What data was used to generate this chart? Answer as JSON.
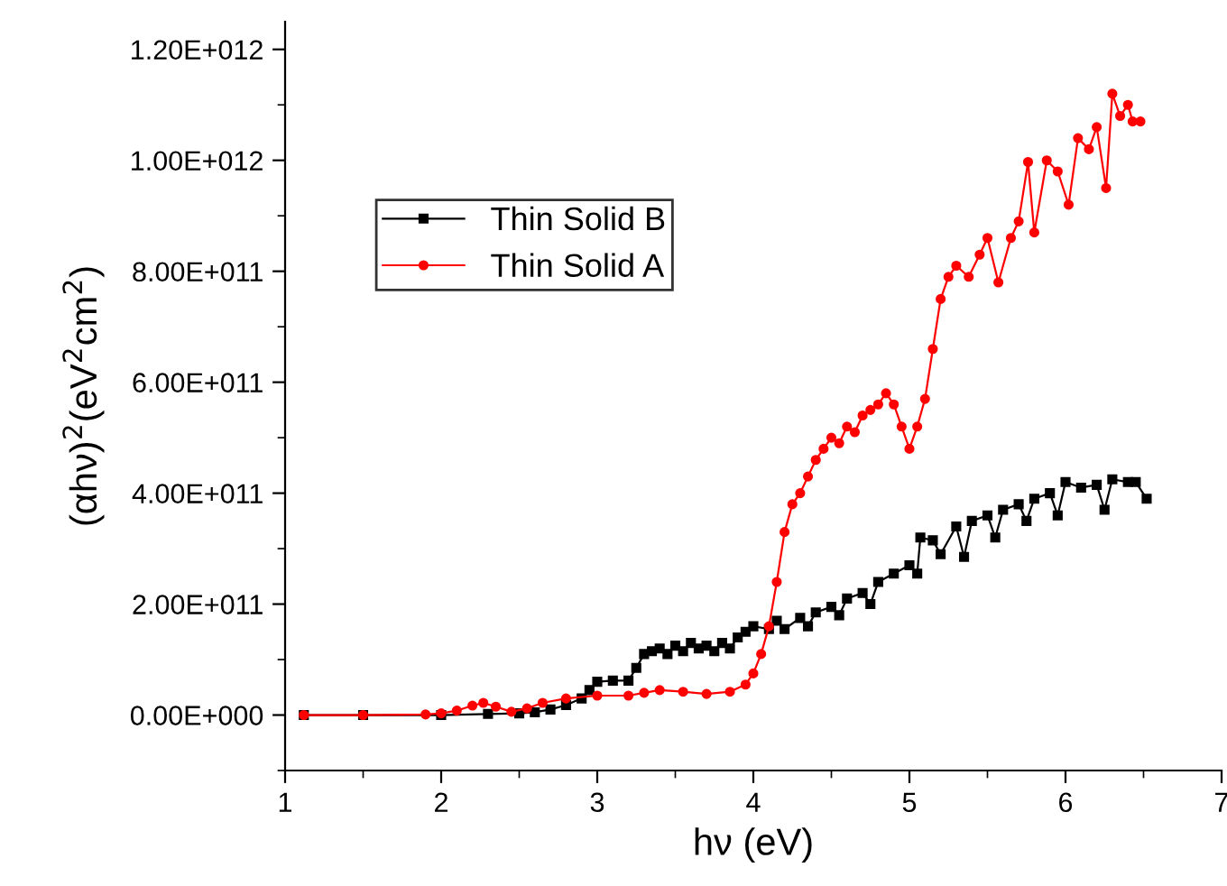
{
  "chart_data": {
    "type": "line",
    "xlabel": "hν (eV)",
    "ylabel": "(αhν)$^{2}$(eV$^{2}$cm$^{2}$)",
    "xlim": [
      1,
      7
    ],
    "xticks": [
      1,
      2,
      3,
      4,
      5,
      6,
      7
    ],
    "ylim": [
      -100000000000.0,
      1250000000000.0
    ],
    "yticks": [
      {
        "value": 0,
        "label": "0.00E+000"
      },
      {
        "value": 200000000000.0,
        "label": "2.00E+011"
      },
      {
        "value": 400000000000.0,
        "label": "4.00E+011"
      },
      {
        "value": 600000000000.0,
        "label": "6.00E+011"
      },
      {
        "value": 800000000000.0,
        "label": "8.00E+011"
      },
      {
        "value": 1000000000000.0,
        "label": "1.00E+012"
      },
      {
        "value": 1200000000000.0,
        "label": "1.20E+012"
      }
    ],
    "grid": false,
    "legend": "left",
    "series": [
      {
        "name": "Thin Solid B",
        "color": "#000000",
        "marker": "square",
        "x": [
          1.12,
          1.5,
          2.0,
          2.3,
          2.5,
          2.6,
          2.7,
          2.8,
          2.9,
          2.95,
          3.0,
          3.1,
          3.2,
          3.25,
          3.3,
          3.35,
          3.4,
          3.45,
          3.5,
          3.55,
          3.6,
          3.65,
          3.7,
          3.75,
          3.8,
          3.85,
          3.9,
          3.95,
          4.0,
          4.1,
          4.15,
          4.2,
          4.3,
          4.35,
          4.4,
          4.5,
          4.55,
          4.6,
          4.7,
          4.75,
          4.8,
          4.9,
          5.0,
          5.05,
          5.07,
          5.15,
          5.2,
          5.3,
          5.35,
          5.4,
          5.5,
          5.55,
          5.6,
          5.7,
          5.75,
          5.8,
          5.9,
          5.95,
          6.0,
          6.1,
          6.2,
          6.25,
          6.3,
          6.4,
          6.45,
          6.52
        ],
        "values": [
          0,
          0,
          0,
          2000000000.0,
          3000000000.0,
          5000000000.0,
          10000000000.0,
          18000000000.0,
          30000000000.0,
          45000000000.0,
          60000000000.0,
          62000000000.0,
          62000000000.0,
          85000000000.0,
          110000000000.0,
          115000000000.0,
          120000000000.0,
          110000000000.0,
          125000000000.0,
          115000000000.0,
          130000000000.0,
          120000000000.0,
          125000000000.0,
          115000000000.0,
          130000000000.0,
          120000000000.0,
          140000000000.0,
          150000000000.0,
          160000000000.0,
          155000000000.0,
          170000000000.0,
          155000000000.0,
          175000000000.0,
          160000000000.0,
          185000000000.0,
          195000000000.0,
          180000000000.0,
          210000000000.0,
          220000000000.0,
          200000000000.0,
          240000000000.0,
          255000000000.0,
          270000000000.0,
          255000000000.0,
          320000000000.0,
          315000000000.0,
          290000000000.0,
          340000000000.0,
          285000000000.0,
          350000000000.0,
          360000000000.0,
          320000000000.0,
          370000000000.0,
          380000000000.0,
          350000000000.0,
          390000000000.0,
          400000000000.0,
          360000000000.0,
          420000000000.0,
          410000000000.0,
          415000000000.0,
          370000000000.0,
          425000000000.0,
          420000000000.0,
          420000000000.0,
          390000000000.0
        ]
      },
      {
        "name": "Thin Solid A",
        "color": "#ff0000",
        "marker": "circle",
        "x": [
          1.12,
          1.5,
          1.9,
          2.0,
          2.1,
          2.2,
          2.27,
          2.35,
          2.45,
          2.55,
          2.65,
          2.8,
          3.0,
          3.2,
          3.3,
          3.4,
          3.55,
          3.7,
          3.85,
          3.95,
          4.0,
          4.05,
          4.1,
          4.15,
          4.2,
          4.25,
          4.3,
          4.35,
          4.4,
          4.45,
          4.5,
          4.55,
          4.6,
          4.65,
          4.7,
          4.75,
          4.8,
          4.85,
          4.9,
          4.95,
          5.0,
          5.05,
          5.1,
          5.15,
          5.2,
          5.25,
          5.3,
          5.38,
          5.45,
          5.5,
          5.57,
          5.65,
          5.7,
          5.76,
          5.8,
          5.88,
          5.95,
          6.02,
          6.08,
          6.15,
          6.2,
          6.26,
          6.3,
          6.35,
          6.4,
          6.43,
          6.48
        ],
        "values": [
          0,
          0,
          1000000000.0,
          3000000000.0,
          8000000000.0,
          17000000000.0,
          22000000000.0,
          15000000000.0,
          6000000000.0,
          12000000000.0,
          22000000000.0,
          30000000000.0,
          35000000000.0,
          35000000000.0,
          40000000000.0,
          45000000000.0,
          42000000000.0,
          38000000000.0,
          42000000000.0,
          55000000000.0,
          75000000000.0,
          110000000000.0,
          160000000000.0,
          240000000000.0,
          330000000000.0,
          380000000000.0,
          400000000000.0,
          430000000000.0,
          460000000000.0,
          480000000000.0,
          500000000000.0,
          490000000000.0,
          520000000000.0,
          510000000000.0,
          540000000000.0,
          550000000000.0,
          560000000000.0,
          580000000000.0,
          560000000000.0,
          520000000000.0,
          480000000000.0,
          520000000000.0,
          570000000000.0,
          660000000000.0,
          750000000000.0,
          790000000000.0,
          810000000000.0,
          790000000000.0,
          830000000000.0,
          860000000000.0,
          780000000000.0,
          860000000000.0,
          890000000000.0,
          997000000000.0,
          870000000000.0,
          1000000000000.0,
          980000000000.0,
          920000000000.0,
          1040000000000.0,
          1020000000000.0,
          1060000000000.0,
          950000000000.0,
          1120000000000.0,
          1080000000000.0,
          1100000000000.0,
          1070000000000.0,
          1070000000000.0
        ]
      }
    ]
  }
}
